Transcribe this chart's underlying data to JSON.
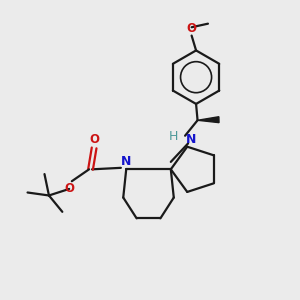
{
  "background_color": "#ebebeb",
  "bond_color": "#1a1a1a",
  "nitrogen_color": "#1414cc",
  "oxygen_color": "#cc1414",
  "nh_color": "#4d9999",
  "figsize": [
    3.0,
    3.0
  ],
  "dpi": 100,
  "xlim": [
    0,
    10
  ],
  "ylim": [
    0,
    10
  ]
}
